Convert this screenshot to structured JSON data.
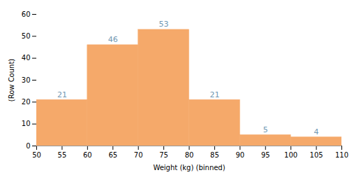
{
  "chart_data": {
    "type": "histogram",
    "bins": [
      50,
      60,
      70,
      80,
      90,
      100,
      110
    ],
    "values": [
      21,
      46,
      53,
      21,
      5,
      4
    ],
    "color": "#f5a96a",
    "xlabel": "Weight (kg) (binned)",
    "ylabel": "(Row Count)",
    "xlim": [
      50,
      110
    ],
    "ylim": [
      0,
      60
    ],
    "xticks": [
      50,
      55,
      60,
      65,
      70,
      75,
      80,
      85,
      90,
      95,
      100,
      105,
      110
    ],
    "yticks": [
      0,
      10,
      20,
      30,
      40,
      50,
      60
    ],
    "grid": false,
    "data_labels": true
  }
}
